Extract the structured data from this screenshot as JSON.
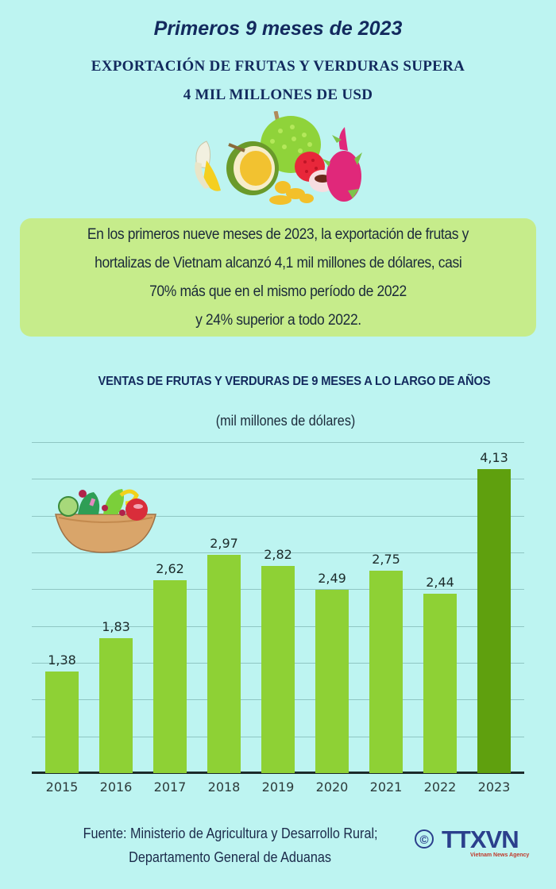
{
  "header": {
    "subtitle": "Primeros 9 meses de 2023",
    "headline_line1": "EXPORTACIÓN DE FRUTAS Y VERDURAS SUPERA",
    "headline_line2": "4 MIL MILLONES DE USD"
  },
  "illustrations": {
    "fruits": "fruit-cluster-icon",
    "salad": "salad-bowl-icon"
  },
  "summary": {
    "lines": [
      "En los primeros nueve meses de 2023, la exportación de frutas y",
      "hortalizas de Vietnam alcanzó 4,1 mil millones de dólares, casi",
      "70% más que en el mismo período de 2022",
      "y 24% superior a todo 2022."
    ]
  },
  "colors": {
    "background": "#bdf4f1",
    "summary_box": "#c6ec8b",
    "bar": "#8ed135",
    "bar_highlight": "#5fa00e",
    "title": "#132a5e"
  },
  "chart_data": {
    "type": "bar",
    "title": "VENTAS DE FRUTAS Y VERDURAS DE 9 MESES A LO LARGO DE AÑOS",
    "subtitle": "(mil millones de dólares)",
    "xlabel": "",
    "ylabel": "mil millones de dólares",
    "categories": [
      "2015",
      "2016",
      "2017",
      "2018",
      "2019",
      "2020",
      "2021",
      "2022",
      "2023"
    ],
    "values": [
      1.38,
      1.83,
      2.62,
      2.97,
      2.82,
      2.49,
      2.75,
      2.44,
      4.13
    ],
    "value_labels": [
      "1,38",
      "1,83",
      "2,62",
      "2,97",
      "2,82",
      "2,49",
      "2,75",
      "2,44",
      "4,13"
    ],
    "highlight_index": 8,
    "ylim": [
      0,
      4.5
    ],
    "grid": true,
    "grid_step": 0.5,
    "y_tick_labels_shown": false,
    "legend": null
  },
  "footer": {
    "source_line1": "Fuente: Ministerio de Agricultura y Desarrollo Rural;",
    "source_line2": "Departamento General de Aduanas",
    "copyright_symbol": "©",
    "logo_text": "TTXVN",
    "logo_subtext": "Vietnam News Agency"
  }
}
